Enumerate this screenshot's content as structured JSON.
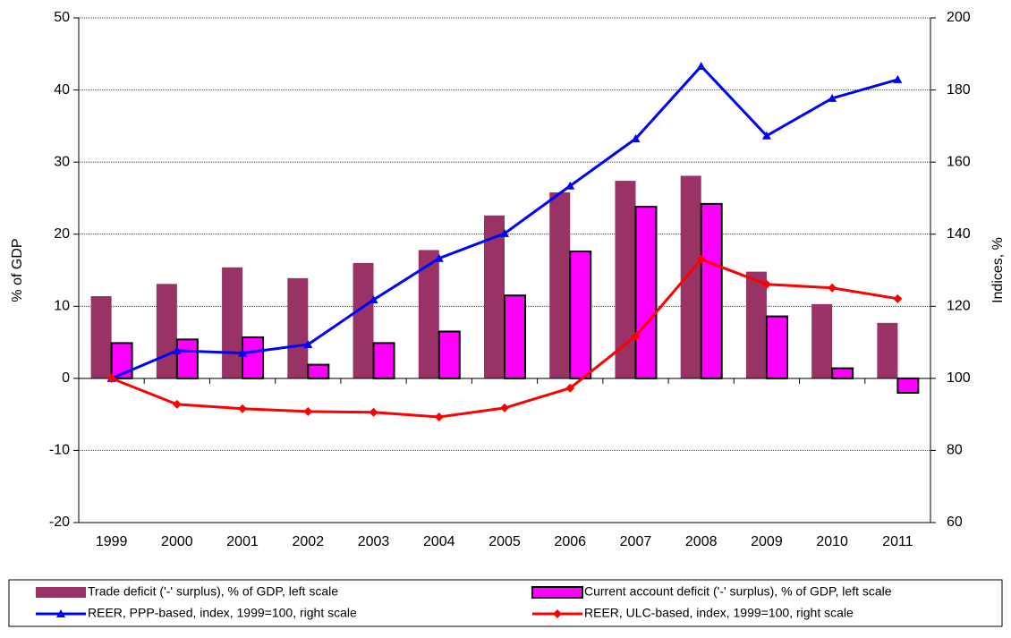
{
  "chart_data": {
    "type": "bar",
    "categories": [
      "1999",
      "2000",
      "2001",
      "2002",
      "2003",
      "2004",
      "2005",
      "2006",
      "2007",
      "2008",
      "2009",
      "2010",
      "2011"
    ],
    "y_label": "% of GDP",
    "y2_label": "Indices, %",
    "ylim": [
      -20,
      50
    ],
    "yticks": [
      -20,
      -10,
      0,
      10,
      20,
      30,
      40,
      50
    ],
    "y2lim": [
      60,
      200
    ],
    "y2ticks": [
      60,
      80,
      100,
      120,
      140,
      160,
      180,
      200
    ],
    "grid": true,
    "legend": "bottom",
    "series": [
      {
        "name": "Trade deficit ('-' surplus), % of GDP, left scale",
        "type": "bar",
        "color": "#993366",
        "values": [
          11.4,
          13.1,
          15.4,
          13.9,
          16.0,
          17.8,
          22.6,
          25.8,
          27.4,
          28.1,
          14.8,
          10.3,
          7.7
        ]
      },
      {
        "name": "Current account deficit ('-' surplus), % of GDP, left scale",
        "type": "bar",
        "color": "#ff00ff",
        "values": [
          4.9,
          5.4,
          5.7,
          1.9,
          4.9,
          6.5,
          11.5,
          17.6,
          23.8,
          24.2,
          8.6,
          1.4,
          -2.0
        ]
      },
      {
        "name": "REER, PPP-based, index, 1999=100, right scale",
        "type": "line",
        "axis": "y2",
        "color": "#0000ff",
        "marker": "triangle",
        "values": [
          100,
          107.7,
          107.0,
          109.4,
          121.8,
          133.3,
          140.2,
          153.4,
          166.5,
          186.6,
          167.3,
          177.7,
          182.9
        ]
      },
      {
        "name": "REER, ULC-based, index, 1999=100, right scale",
        "type": "line",
        "axis": "y2",
        "color": "#ff0000",
        "marker": "diamond",
        "values": [
          100,
          92.8,
          91.6,
          90.8,
          90.6,
          89.3,
          91.8,
          97.3,
          111.7,
          133.0,
          126.1,
          125.1,
          122.1
        ]
      }
    ]
  }
}
